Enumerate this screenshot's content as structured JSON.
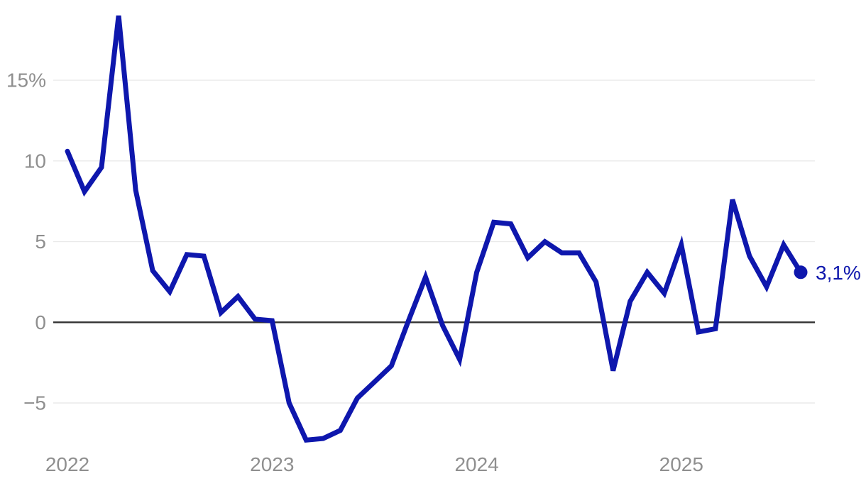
{
  "chart_data": {
    "type": "line",
    "title": "",
    "subtitle": "",
    "unit": "%",
    "x": [
      "2022-01",
      "2022-02",
      "2022-03",
      "2022-04",
      "2022-05",
      "2022-06",
      "2022-07",
      "2022-08",
      "2022-09",
      "2022-10",
      "2022-11",
      "2022-12",
      "2023-01",
      "2023-02",
      "2023-03",
      "2023-04",
      "2023-05",
      "2023-06",
      "2023-07",
      "2023-08",
      "2023-09",
      "2023-10",
      "2023-11",
      "2023-12",
      "2024-01",
      "2024-02",
      "2024-03",
      "2024-04",
      "2024-05",
      "2024-06",
      "2024-07",
      "2024-08",
      "2024-09",
      "2024-10",
      "2024-11",
      "2024-12",
      "2025-01",
      "2025-02",
      "2025-03",
      "2025-04",
      "2025-05",
      "2025-06",
      "2025-07",
      "2025-08"
    ],
    "series": [
      {
        "name": "monthly-rate-percent",
        "values": [
          10.6,
          8.1,
          9.6,
          19.0,
          8.2,
          3.2,
          1.9,
          4.2,
          4.1,
          0.6,
          1.6,
          0.2,
          0.1,
          -5.0,
          -7.3,
          -7.2,
          -6.7,
          -4.7,
          -3.7,
          -2.7,
          0.1,
          2.8,
          -0.2,
          -2.3,
          3.1,
          6.2,
          6.1,
          4.0,
          5.0,
          4.3,
          4.3,
          2.5,
          -3.0,
          1.3,
          3.1,
          1.8,
          4.8,
          -0.6,
          -0.4,
          7.6,
          4.1,
          2.2,
          4.8,
          3.1
        ]
      }
    ],
    "last_value": 3.1,
    "end_label": "3,1%",
    "yticks": [
      {
        "value": 15,
        "label": "15%"
      },
      {
        "value": 10,
        "label": "10"
      },
      {
        "value": 5,
        "label": "5"
      },
      {
        "value": 0,
        "label": "0"
      },
      {
        "value": -5,
        "label": "−5"
      }
    ],
    "x_year_ticks": [
      {
        "month_index": 0,
        "label": "2022"
      },
      {
        "month_index": 12,
        "label": "2023"
      },
      {
        "month_index": 24,
        "label": "2024"
      },
      {
        "month_index": 36,
        "label": "2025"
      }
    ],
    "ylim": [
      -8.6,
      19.6
    ],
    "grid": "horizontal",
    "legend": "none",
    "colors": {
      "line": "#0e17ad",
      "marker": "#0e17ad",
      "end_label": "#0e17ad",
      "axis_label": "#8f8f8f",
      "zero_line": "#333333",
      "gridline": "#eaeaea",
      "background": "#ffffff"
    }
  }
}
